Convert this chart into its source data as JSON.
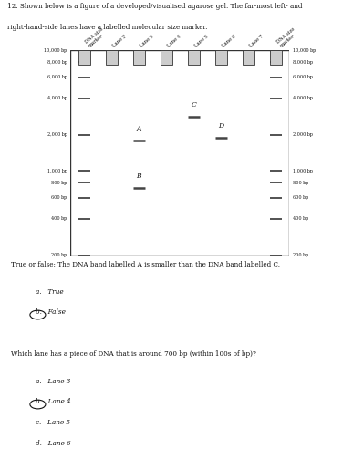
{
  "title_line1": "12. Shown below is a figure of a developed/visualised agarose gel. The far-most left- and",
  "title_line2": "right-hand-side lanes have a labelled molecular size marker.",
  "question1": "True or false: The DNA band labelled A is smaller than the DNA band labelled C.",
  "question2": "Which lane has a piece of DNA that is around 700 bp (within 100s of bp)?",
  "lane_labels": [
    "DNA size\nmarker",
    "Lane 2",
    "Lane 3",
    "Lane 4",
    "Lane 5",
    "Lane 6",
    "Lane 7",
    "DNA size\nmarker"
  ],
  "marker_sizes": [
    10000,
    8000,
    6000,
    4000,
    2000,
    1000,
    800,
    600,
    400,
    200
  ],
  "marker_labels_left": [
    "10,000 bp",
    "8,000 bp",
    "6,000 bp",
    "4,000 bp",
    "2,000 bp",
    "1,000 bp",
    "800 bp",
    "600 bp",
    "400 bp",
    "200 bp"
  ],
  "marker_labels_right": [
    "10,000 bp",
    "8,000 bp",
    "6,000 bp",
    "4,000 bp",
    "2,000 bp",
    "1,000 bp",
    "800 bp",
    "600 bp",
    "400 bp",
    "200 bp"
  ],
  "band_A_lane_idx": 2,
  "band_A_size": 1800,
  "band_B_lane_idx": 2,
  "band_B_size": 720,
  "band_C_lane_idx": 4,
  "band_C_size": 2800,
  "band_D_lane_idx": 5,
  "band_D_size": 1900,
  "gel_bg": "#dcdcdc",
  "band_color": "#444444",
  "border_color": "#333333",
  "text_color": "#111111",
  "page_bg": "#ffffff",
  "well_color": "#cccccc"
}
